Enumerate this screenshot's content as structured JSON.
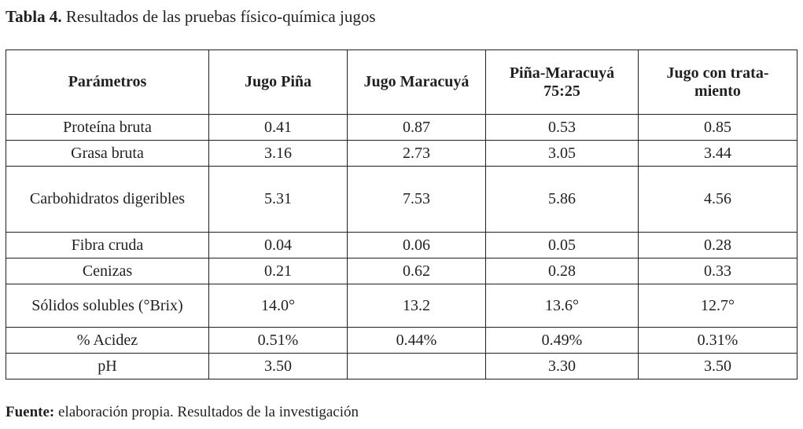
{
  "caption": {
    "label": "Tabla 4.",
    "text": "Resultados de las pruebas físico-química jugos"
  },
  "table": {
    "headers": [
      {
        "line1": "Parámetros",
        "line2": ""
      },
      {
        "line1": "Jugo Piña",
        "line2": ""
      },
      {
        "line1": "Jugo Maracuyá",
        "line2": ""
      },
      {
        "line1": "Piña-Maracuyá",
        "line2": "75:25"
      },
      {
        "line1": "Jugo con trata-",
        "line2": "miento"
      }
    ],
    "rows": [
      {
        "param": "Proteína bruta",
        "c1": "0.41",
        "c2": "0.87",
        "c3": "0.53",
        "c4": "0.85"
      },
      {
        "param": "Grasa bruta",
        "c1": "3.16",
        "c2": "2.73",
        "c3": "3.05",
        "c4": "3.44"
      },
      {
        "param": "Carbohidratos digeribles",
        "c1": "5.31",
        "c2": "7.53",
        "c3": "5.86",
        "c4": "4.56"
      },
      {
        "param": "Fibra cruda",
        "c1": "0.04",
        "c2": "0.06",
        "c3": "0.05",
        "c4": "0.28"
      },
      {
        "param": "Cenizas",
        "c1": "0.21",
        "c2": "0.62",
        "c3": "0.28",
        "c4": "0.33"
      },
      {
        "param": "Sólidos solubles (°Brix)",
        "c1": "14.0°",
        "c2": "13.2",
        "c3": "13.6°",
        "c4": "12.7°"
      },
      {
        "param": "% Acidez",
        "c1": "0.51%",
        "c2": "0.44%",
        "c3": "0.49%",
        "c4": "0.31%"
      },
      {
        "param": "pH",
        "c1": "3.50",
        "c2": "",
        "c3": "3.30",
        "c4": "3.50"
      }
    ]
  },
  "footer": {
    "label": "Fuente:",
    "text": "elaboración propia. Resultados de la investigación"
  }
}
